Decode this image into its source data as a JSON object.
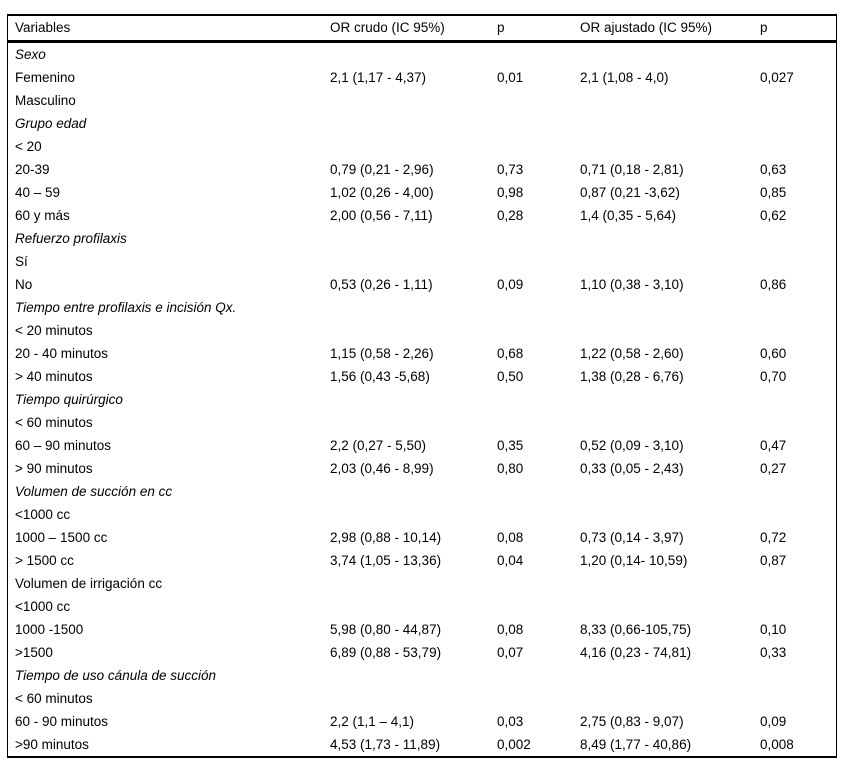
{
  "table": {
    "headers": [
      "Variables",
      "OR crudo (IC 95%)",
      "p",
      "OR ajustado (IC 95%)",
      "p"
    ],
    "rows": [
      {
        "label": "Sexo",
        "italic": true,
        "or_crudo": "",
        "p_crudo": "",
        "or_ajustado": "",
        "p_ajustado": ""
      },
      {
        "label": "Femenino",
        "italic": false,
        "or_crudo": "2,1 (1,17 - 4,37)",
        "p_crudo": "0,01",
        "or_ajustado": "2,1 (1,08 - 4,0)",
        "p_ajustado": "0,027"
      },
      {
        "label": "Masculino",
        "italic": false,
        "or_crudo": "",
        "p_crudo": "",
        "or_ajustado": "",
        "p_ajustado": ""
      },
      {
        "label": "Grupo edad",
        "italic": true,
        "or_crudo": "",
        "p_crudo": "",
        "or_ajustado": "",
        "p_ajustado": ""
      },
      {
        "label": "< 20",
        "italic": false,
        "or_crudo": "",
        "p_crudo": "",
        "or_ajustado": "",
        "p_ajustado": ""
      },
      {
        "label": "20-39",
        "italic": false,
        "or_crudo": "0,79 (0,21 - 2,96)",
        "p_crudo": "0,73",
        "or_ajustado": "0,71 (0,18 - 2,81)",
        "p_ajustado": "0,63"
      },
      {
        "label": "40 – 59",
        "italic": false,
        "or_crudo": "1,02 (0,26 - 4,00)",
        "p_crudo": "0,98",
        "or_ajustado": "0,87 (0,21 -3,62)",
        "p_ajustado": "0,85"
      },
      {
        "label": "60 y más",
        "italic": false,
        "or_crudo": "2,00 (0,56 - 7,11)",
        "p_crudo": "0,28",
        "or_ajustado": "1,4 (0,35 - 5,64)",
        "p_ajustado": "0,62"
      },
      {
        "label": "Refuerzo profilaxis",
        "italic": true,
        "or_crudo": "",
        "p_crudo": "",
        "or_ajustado": "",
        "p_ajustado": ""
      },
      {
        "label": "Sí",
        "italic": false,
        "or_crudo": "",
        "p_crudo": "",
        "or_ajustado": "",
        "p_ajustado": ""
      },
      {
        "label": "No",
        "italic": false,
        "or_crudo": "0,53 (0,26 - 1,11)",
        "p_crudo": "0,09",
        "or_ajustado": "1,10 (0,38 - 3,10)",
        "p_ajustado": "0,86"
      },
      {
        "label": "Tiempo entre profilaxis e incisión Qx.",
        "italic": true,
        "or_crudo": "",
        "p_crudo": "",
        "or_ajustado": "",
        "p_ajustado": ""
      },
      {
        "label": "< 20 minutos",
        "italic": false,
        "or_crudo": "",
        "p_crudo": "",
        "or_ajustado": "",
        "p_ajustado": ""
      },
      {
        "label": "20 - 40 minutos",
        "italic": false,
        "or_crudo": "1,15 (0,58 - 2,26)",
        "p_crudo": "0,68",
        "or_ajustado": "1,22 (0,58 - 2,60)",
        "p_ajustado": "0,60"
      },
      {
        "label": "> 40 minutos",
        "italic": false,
        "or_crudo": "1,56 (0,43 -5,68)",
        "p_crudo": "0,50",
        "or_ajustado": "1,38 (0,28 - 6,76)",
        "p_ajustado": "0,70"
      },
      {
        "label": "Tiempo quirúrgico",
        "italic": true,
        "or_crudo": "",
        "p_crudo": "",
        "or_ajustado": "",
        "p_ajustado": ""
      },
      {
        "label": "< 60 minutos",
        "italic": false,
        "or_crudo": "",
        "p_crudo": "",
        "or_ajustado": "",
        "p_ajustado": ""
      },
      {
        "label": "60 – 90 minutos",
        "italic": false,
        "or_crudo": "2,2 (0,27 - 5,50)",
        "p_crudo": "0,35",
        "or_ajustado": "0,52 (0,09 - 3,10)",
        "p_ajustado": "0,47"
      },
      {
        "label": "> 90 minutos",
        "italic": false,
        "or_crudo": "2,03 (0,46 - 8,99)",
        "p_crudo": "0,80",
        "or_ajustado": "0,33 (0,05 - 2,43)",
        "p_ajustado": "0,27"
      },
      {
        "label": "Volumen de succión en cc",
        "italic": true,
        "or_crudo": "",
        "p_crudo": "",
        "or_ajustado": "",
        "p_ajustado": ""
      },
      {
        "label": "<1000 cc",
        "italic": false,
        "or_crudo": "",
        "p_crudo": "",
        "or_ajustado": "",
        "p_ajustado": ""
      },
      {
        "label": "1000 – 1500 cc",
        "italic": false,
        "or_crudo": "2,98 (0,88 - 10,14)",
        "p_crudo": "0,08",
        "or_ajustado": "0,73 (0,14 - 3,97)",
        "p_ajustado": "0,72"
      },
      {
        "label": "> 1500 cc",
        "italic": false,
        "or_crudo": "3,74 (1,05 - 13,36)",
        "p_crudo": "0,04",
        "or_ajustado": "1,20 (0,14- 10,59)",
        "p_ajustado": "0,87"
      },
      {
        "label": "Volumen de irrigación cc",
        "italic": false,
        "or_crudo": "",
        "p_crudo": "",
        "or_ajustado": "",
        "p_ajustado": ""
      },
      {
        "label": "<1000 cc",
        "italic": false,
        "or_crudo": "",
        "p_crudo": "",
        "or_ajustado": "",
        "p_ajustado": ""
      },
      {
        "label": "1000 -1500",
        "italic": false,
        "or_crudo": "5,98 (0,80 - 44,87)",
        "p_crudo": "0,08",
        "or_ajustado": "8,33 (0,66-105,75)",
        "p_ajustado": "0,10"
      },
      {
        "label": ">1500",
        "italic": false,
        "or_crudo": "6,89 (0,88 - 53,79)",
        "p_crudo": "0,07",
        "or_ajustado": "4,16 (0,23 - 74,81)",
        "p_ajustado": "0,33"
      },
      {
        "label": "Tiempo de uso cánula de succión",
        "italic": true,
        "or_crudo": "",
        "p_crudo": "",
        "or_ajustado": "",
        "p_ajustado": ""
      },
      {
        "label": "< 60 minutos",
        "italic": false,
        "or_crudo": "",
        "p_crudo": "",
        "or_ajustado": "",
        "p_ajustado": ""
      },
      {
        "label": "60 - 90 minutos",
        "italic": false,
        "or_crudo": "2,2 (1,1 – 4,1)",
        "p_crudo": "0,03",
        "or_ajustado": "2,75 (0,83 - 9,07)",
        "p_ajustado": "0,09"
      },
      {
        "label": ">90 minutos",
        "italic": false,
        "or_crudo": "4,53 (1,73 - 11,89)",
        "p_crudo": "0,002",
        "or_ajustado": "8,49 (1,77 - 40,86)",
        "p_ajustado": "0,008"
      }
    ]
  }
}
